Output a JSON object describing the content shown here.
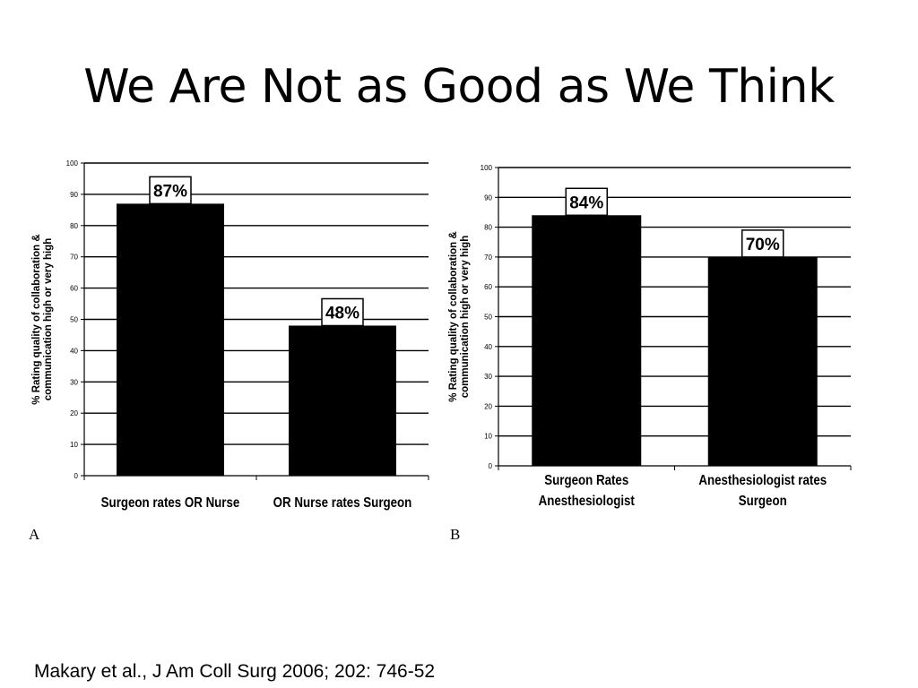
{
  "slide": {
    "title": "We Are Not as Good as We Think",
    "citation": "Makary et al., J Am Coll Surg 2006; 202: 746-52"
  },
  "colors": {
    "bar": "#000000",
    "grid": "#000000",
    "label_box_fill": "#ffffff",
    "background": "#ffffff"
  },
  "chart_data": [
    {
      "type": "bar",
      "panel_label": "A",
      "title": "",
      "xlabel": "",
      "ylabel": "% Rating quality of collaboration & communication high or very high",
      "ylabel_lines": [
        "% Rating quality of collaboration &",
        "communication high or very high"
      ],
      "categories": [
        "Surgeon rates OR Nurse",
        "OR Nurse rates Surgeon"
      ],
      "category_lines": [
        [
          "Surgeon rates OR Nurse"
        ],
        [
          "OR Nurse rates Surgeon"
        ]
      ],
      "values": [
        87,
        48
      ],
      "data_labels": [
        "87%",
        "48%"
      ],
      "ylim": [
        0,
        100
      ],
      "yticks": [
        0,
        10,
        20,
        30,
        40,
        50,
        60,
        70,
        80,
        90,
        100
      ],
      "grid": true,
      "legend": false
    },
    {
      "type": "bar",
      "panel_label": "B",
      "title": "",
      "xlabel": "",
      "ylabel": "% Rating quality of collaboration & communication high or very high",
      "ylabel_lines": [
        "% Rating quality of collaboration &",
        "communication high or very high"
      ],
      "categories": [
        "Surgeon Rates Anesthesiologist",
        "Anesthesiologist rates Surgeon"
      ],
      "category_lines": [
        [
          "Surgeon Rates",
          "Anesthesiologist"
        ],
        [
          "Anesthesiologist rates",
          "Surgeon"
        ]
      ],
      "values": [
        84,
        70
      ],
      "data_labels": [
        "84%",
        "70%"
      ],
      "ylim": [
        0,
        100
      ],
      "yticks": [
        0,
        10,
        20,
        30,
        40,
        50,
        60,
        70,
        80,
        90,
        100
      ],
      "grid": true,
      "legend": false
    }
  ]
}
